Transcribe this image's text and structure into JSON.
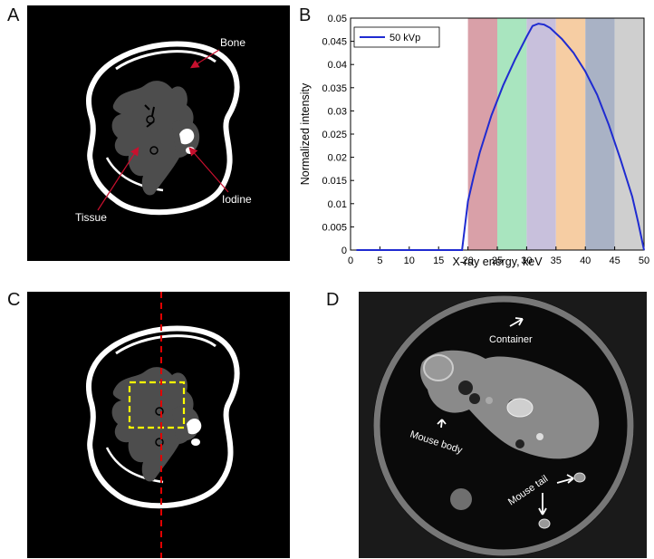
{
  "panels": {
    "a": {
      "letter": "A",
      "labels": {
        "bone": "Bone",
        "tissue": "Tissue",
        "iodine": "Iodine"
      }
    },
    "b": {
      "letter": "B"
    },
    "c": {
      "letter": "C"
    },
    "d": {
      "letter": "D",
      "labels": {
        "container": "Container",
        "body": "Mouse body",
        "tail": "Mouse tail"
      }
    }
  },
  "colors": {
    "arrow_red": "#c8102e",
    "curve": "#1f2bd1",
    "dashed_line": "#e00000",
    "roi_box": "#ffff00",
    "tissue": "#4d4d4d",
    "bone": "#ffffff"
  },
  "chart_data": {
    "type": "line",
    "xlabel": "X-ray energy, keV",
    "ylabel": "Normalized intensity",
    "xlim": [
      0,
      50
    ],
    "ylim": [
      0,
      0.05
    ],
    "xticks": [
      0,
      5,
      10,
      15,
      20,
      25,
      30,
      35,
      40,
      45,
      50
    ],
    "yticks": [
      "0",
      "0.005",
      "0.01",
      "0.015",
      "0.02",
      "0.025",
      "0.03",
      "0.035",
      "0.04",
      "0.045",
      "0.05"
    ],
    "legend": "top-left",
    "series": [
      {
        "name": "50 kVp",
        "x": [
          1,
          19,
          20,
          21,
          22,
          24,
          26,
          28,
          30,
          31,
          32,
          33,
          34,
          36,
          38,
          40,
          42,
          44,
          46,
          48,
          49,
          50
        ],
        "y": [
          0,
          0,
          0.0105,
          0.016,
          0.021,
          0.029,
          0.0355,
          0.041,
          0.046,
          0.0483,
          0.0488,
          0.0486,
          0.0479,
          0.0455,
          0.0425,
          0.0385,
          0.0335,
          0.027,
          0.0195,
          0.0115,
          0.006,
          0
        ]
      }
    ],
    "energy_bins": [
      {
        "range": [
          20,
          25
        ],
        "color": "#d9a0a8"
      },
      {
        "range": [
          25,
          30
        ],
        "color": "#a9e5bf"
      },
      {
        "range": [
          30,
          35
        ],
        "color": "#c8c0dc"
      },
      {
        "range": [
          35,
          40
        ],
        "color": "#f6cda3"
      },
      {
        "range": [
          40,
          45
        ],
        "color": "#a9b2c5"
      },
      {
        "range": [
          45,
          50
        ],
        "color": "#cfcfcf"
      }
    ]
  }
}
